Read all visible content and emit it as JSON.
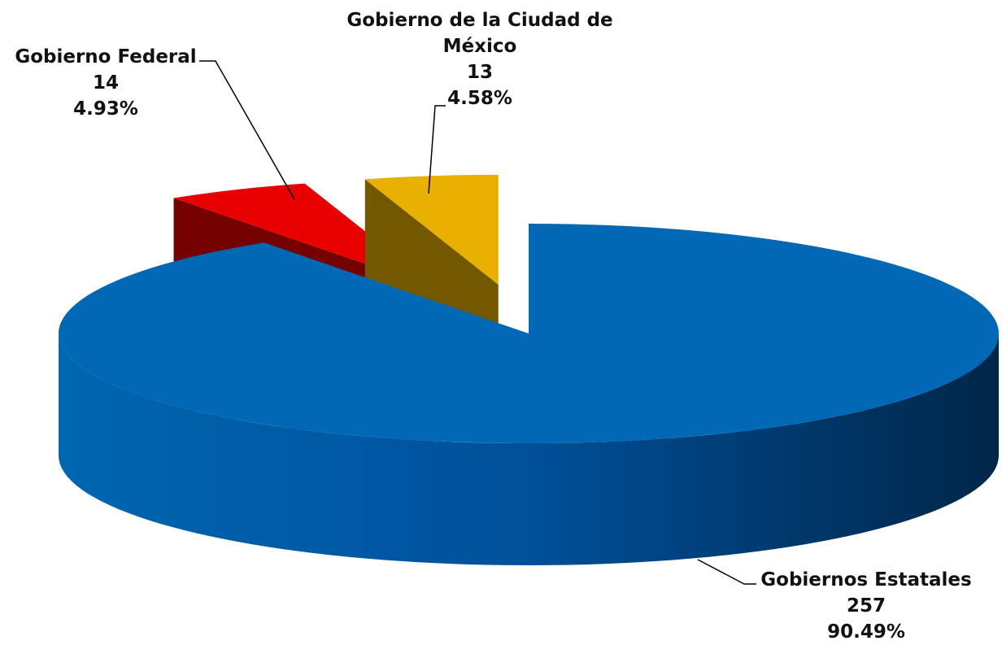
{
  "chart_data": {
    "type": "pie",
    "categories": [
      "Gobiernos Estatales",
      "Gobierno Federal",
      "Gobierno de la Ciudad de México"
    ],
    "values": [
      257,
      14,
      13
    ],
    "percentages": [
      90.49,
      4.93,
      4.58
    ],
    "percentage_labels": [
      "90.49%",
      "4.93%",
      "4.58%"
    ],
    "colors": [
      "#0068b5",
      "#e80000",
      "#e8b000"
    ],
    "exploded": [
      false,
      true,
      true
    ],
    "three_d": true
  }
}
